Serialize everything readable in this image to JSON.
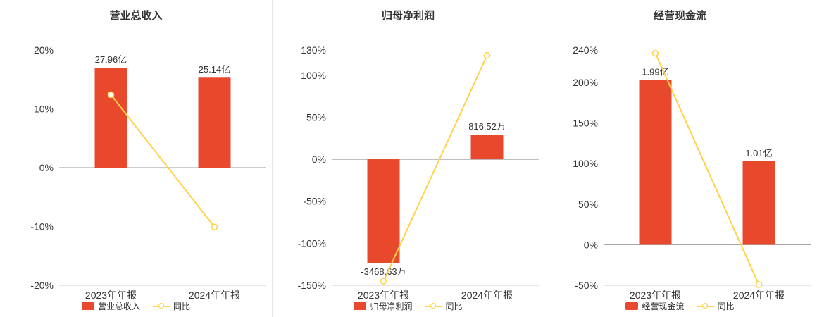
{
  "colors": {
    "bar": "#e8492d",
    "line": "#ffd247",
    "axis": "#cccccc",
    "zero_line": "#999999",
    "text": "#333333",
    "divider": "#e4e4e4"
  },
  "chart_data": [
    {
      "type": "bar",
      "title": "营业总收入",
      "categories": [
        "2023年年报",
        "2024年年报"
      ],
      "bar_series": {
        "name": "营业总收入",
        "unit_labels": [
          "27.96亿",
          "25.14亿"
        ],
        "values_pct": [
          17,
          15.3
        ]
      },
      "line_series": {
        "name": "同比",
        "values_pct": [
          12.4,
          -10.09
        ]
      },
      "y_ticks_pct": [
        20,
        10,
        0,
        -10,
        -20
      ],
      "ylim": [
        -20,
        20
      ],
      "legend_position": "bottom",
      "grid": "zero-line-only"
    },
    {
      "type": "bar",
      "title": "归母净利润",
      "categories": [
        "2023年年报",
        "2024年年报"
      ],
      "bar_series": {
        "name": "归母净利润",
        "unit_labels": [
          "-3468.63万",
          "816.52万"
        ],
        "values_pct": [
          -124,
          29.2
        ]
      },
      "line_series": {
        "name": "同比",
        "values_pct": [
          -145,
          123.5
        ]
      },
      "y_ticks_pct": [
        130,
        100,
        50,
        0,
        -50,
        -100,
        -150
      ],
      "ylim": [
        -150,
        130
      ],
      "legend_position": "bottom",
      "grid": "zero-line-only"
    },
    {
      "type": "bar",
      "title": "经营现金流",
      "categories": [
        "2023年年报",
        "2024年年报"
      ],
      "bar_series": {
        "name": "经营现金流",
        "unit_labels": [
          "1.99亿",
          "1.01亿"
        ],
        "values_pct": [
          203,
          103
        ]
      },
      "line_series": {
        "name": "同比",
        "values_pct": [
          236,
          -49.25
        ]
      },
      "y_ticks_pct": [
        240,
        200,
        150,
        100,
        50,
        0,
        -50
      ],
      "ylim": [
        -50,
        240
      ],
      "legend_position": "bottom",
      "grid": "zero-line-only"
    }
  ]
}
